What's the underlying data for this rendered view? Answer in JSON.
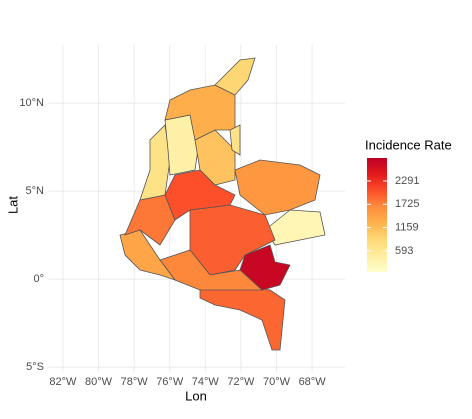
{
  "chart_data": {
    "type": "choropleth",
    "x_label": "Lon",
    "y_label": "Lat",
    "xlim": [
      -82.84,
      -66.15
    ],
    "ylim": [
      -5.28,
      13.3
    ],
    "xticks": [
      {
        "value": -82,
        "label": "82°W"
      },
      {
        "value": -80,
        "label": "80°W"
      },
      {
        "value": -78,
        "label": "78°W"
      },
      {
        "value": -76,
        "label": "76°W"
      },
      {
        "value": -74,
        "label": "74°W"
      },
      {
        "value": -72,
        "label": "72°W"
      },
      {
        "value": -70,
        "label": "70°W"
      },
      {
        "value": -68,
        "label": "68°W"
      }
    ],
    "yticks": [
      {
        "value": -5,
        "label": "5°S"
      },
      {
        "value": 0,
        "label": "0°"
      },
      {
        "value": 5,
        "label": "5°N"
      },
      {
        "value": 10,
        "label": "10°N"
      }
    ],
    "grid": true,
    "values": [
      1900,
      2750,
      300,
      1950,
      1700,
      1400,
      1800,
      700,
      400,
      1550,
      1100,
      2050,
      1300,
      900,
      700
    ],
    "colorbar": {
      "title": "Incidence Rate",
      "lim": [
        80,
        2850
      ],
      "ticks": [
        593,
        1159,
        1725,
        2291
      ],
      "colors": [
        "#ffffcc",
        "#ffeda0",
        "#fed976",
        "#feb24c",
        "#fd8d3c",
        "#fc4e2a",
        "#e31a1c",
        "#bd0026"
      ]
    }
  }
}
